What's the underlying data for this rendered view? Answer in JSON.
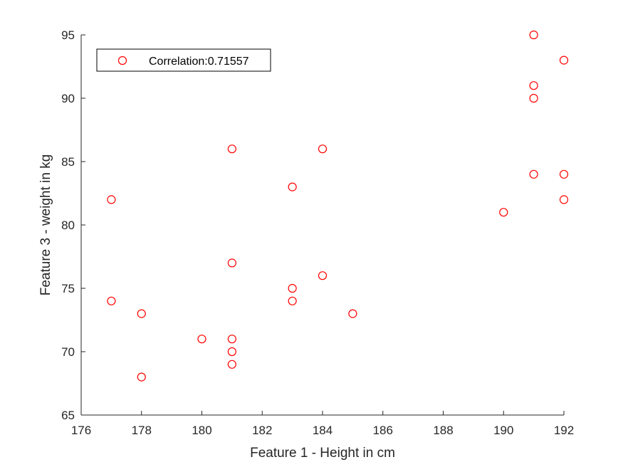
{
  "chart_data": {
    "type": "scatter",
    "title": "",
    "xlabel": "Feature 1 - Height in cm",
    "ylabel": "Feature 3 - weight in kg",
    "xlim": [
      176,
      192
    ],
    "ylim": [
      65,
      95
    ],
    "xticks": [
      176,
      178,
      180,
      182,
      184,
      186,
      188,
      190,
      192
    ],
    "yticks": [
      65,
      70,
      75,
      80,
      85,
      90,
      95
    ],
    "grid": false,
    "legend_position": "top-left",
    "series": [
      {
        "name": "Correlation:0.71557",
        "color": "#ff0000",
        "marker": "circle-open",
        "x": [
          177,
          177,
          178,
          178,
          180,
          181,
          181,
          181,
          181,
          181,
          183,
          183,
          183,
          184,
          184,
          185,
          190,
          191,
          191,
          191,
          191,
          192,
          192,
          192
        ],
        "y": [
          82,
          74,
          73,
          68,
          71,
          86,
          77,
          71,
          70,
          69,
          83,
          75,
          74,
          86,
          76,
          73,
          81,
          95,
          91,
          90,
          84,
          93,
          84,
          82
        ]
      }
    ]
  }
}
